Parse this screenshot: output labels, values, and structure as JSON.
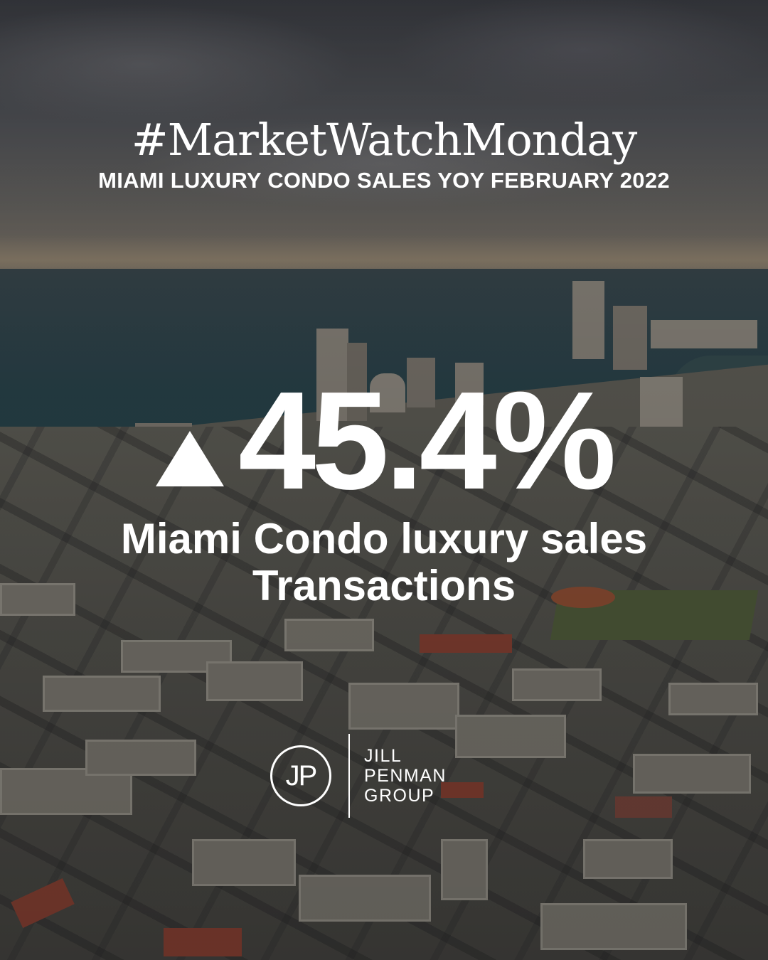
{
  "header": {
    "hashtag": "#MarketWatchMonday",
    "subtitle": "MIAMI LUXURY CONDO SALES YOY FEBRUARY 2022"
  },
  "stat": {
    "direction_icon": "triangle-up-icon",
    "value": "45.4%",
    "label_line1": "Miami Condo luxury sales",
    "label_line2": "Transactions"
  },
  "logo": {
    "monogram": "JP",
    "line1": "JILL",
    "line2": "PENMAN",
    "line3": "GROUP"
  },
  "colors": {
    "text": "#ffffff",
    "sea": "#2f4c55",
    "sky": "#55575c"
  }
}
